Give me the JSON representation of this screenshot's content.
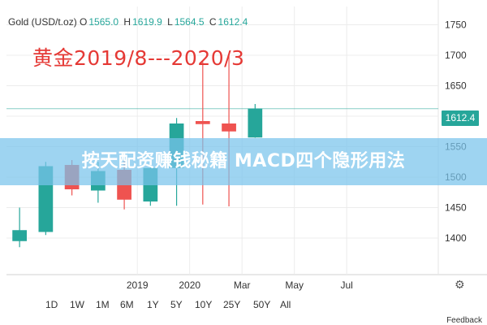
{
  "header": {
    "symbol": "Gold (USD/t.oz)",
    "open_label": "O",
    "open": "1565.0",
    "high_label": "H",
    "high": "1619.9",
    "low_label": "L",
    "low": "1564.5",
    "close_label": "C",
    "close": "1612.4"
  },
  "annotation": "黄金2019/8---2020/3",
  "banner": "按天配资赚钱秘籍 MACD四个隐形用法",
  "last_price": "1612.4",
  "time_ranges": [
    "1D",
    "1W",
    "1M",
    "6M",
    "1Y",
    "5Y",
    "10Y",
    "25Y",
    "50Y",
    "All"
  ],
  "feedback": "Feedback",
  "colors": {
    "up": "#26a69a",
    "down": "#ef5350",
    "accent": "#e53935",
    "banner": "#78c3eb"
  },
  "icons": {
    "settings": "gear-icon"
  },
  "chart_data": {
    "type": "candlestick",
    "yaxis": {
      "ticks": [
        1400,
        1450,
        1500,
        1550,
        1600,
        1650,
        1700,
        1750
      ],
      "ylim": [
        1340,
        1780
      ]
    },
    "xaxis": {
      "ticks": [
        {
          "label": "2019",
          "x": 5
        },
        {
          "label": "2020",
          "x": 7
        },
        {
          "label": "Mar",
          "x": 9
        },
        {
          "label": "May",
          "x": 11
        },
        {
          "label": "Jul",
          "x": 13
        }
      ],
      "xlim": [
        0,
        16.5
      ]
    },
    "candles": [
      {
        "x": 0.5,
        "open": 1395,
        "high": 1450,
        "low": 1385,
        "close": 1413
      },
      {
        "x": 1.5,
        "open": 1410,
        "high": 1525,
        "low": 1405,
        "close": 1518
      },
      {
        "x": 2.5,
        "open": 1520,
        "high": 1528,
        "low": 1470,
        "close": 1480
      },
      {
        "x": 3.5,
        "open": 1478,
        "high": 1525,
        "low": 1458,
        "close": 1510
      },
      {
        "x": 4.5,
        "open": 1512,
        "high": 1530,
        "low": 1447,
        "close": 1463
      },
      {
        "x": 5.5,
        "open": 1460,
        "high": 1522,
        "low": 1453,
        "close": 1515
      },
      {
        "x": 6.5,
        "open": 1515,
        "high": 1597,
        "low": 1453,
        "close": 1588
      },
      {
        "x": 7.5,
        "open": 1592,
        "high": 1689,
        "low": 1455,
        "close": 1587
      },
      {
        "x": 8.5,
        "open": 1588,
        "high": 1703,
        "low": 1452,
        "close": 1575
      },
      {
        "x": 9.5,
        "open": 1565,
        "high": 1620,
        "low": 1564.5,
        "close": 1612.4
      }
    ],
    "last_value": 1612.4
  }
}
